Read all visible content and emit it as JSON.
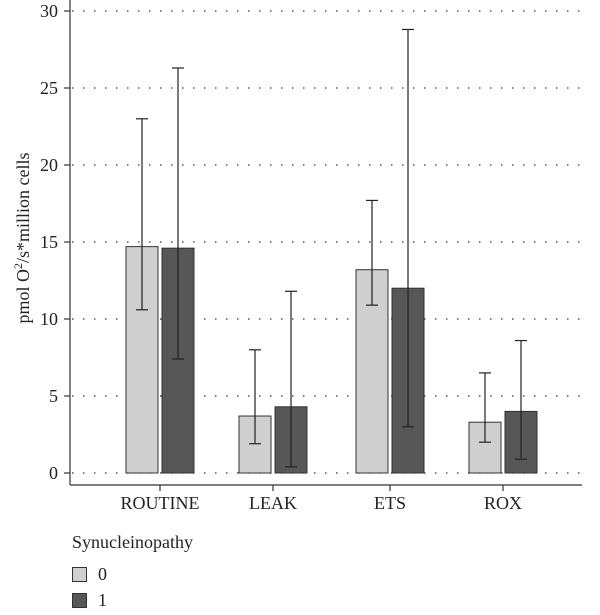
{
  "chart_data": {
    "type": "bar",
    "categories": [
      "ROUTINE",
      "LEAK",
      "ETS",
      "ROX"
    ],
    "ylabel_parts": {
      "pre": "pmol O",
      "sup": "2",
      "post": "/s*million cells"
    },
    "ylim": [
      0,
      30
    ],
    "yticks": [
      "0",
      "5",
      "10",
      "15",
      "20",
      "25",
      "30"
    ],
    "grid": true,
    "legend": {
      "title": "Synucleinopathy",
      "position": "bottom-left"
    },
    "series": [
      {
        "name": "0",
        "color": "#cfcfcf",
        "values": [
          14.7,
          3.7,
          13.2,
          3.3
        ],
        "err_low": [
          10.6,
          1.9,
          10.9,
          2.0
        ],
        "err_high": [
          23.0,
          8.0,
          17.7,
          6.5
        ]
      },
      {
        "name": "1",
        "color": "#575757",
        "values": [
          14.6,
          4.3,
          12.0,
          4.0
        ],
        "err_low": [
          7.4,
          0.4,
          3.0,
          0.9
        ],
        "err_high": [
          26.3,
          11.8,
          28.8,
          8.6
        ]
      }
    ]
  }
}
